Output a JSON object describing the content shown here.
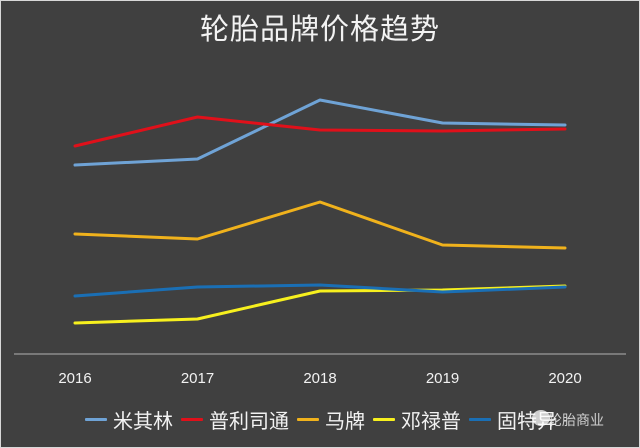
{
  "chart_data": {
    "type": "line",
    "title": "轮胎品牌价格趋势",
    "xlabel": "",
    "ylabel": "",
    "x": [
      "2016",
      "2017",
      "2018",
      "2019",
      "2020"
    ],
    "ylim": [
      0,
      260
    ],
    "y_axis_visible": false,
    "grid": false,
    "legend_position": "bottom",
    "series": [
      {
        "name": "米其林",
        "color": "#6fa3d6",
        "values": [
          189,
          195,
          254,
          231,
          229
        ]
      },
      {
        "name": "普利司通",
        "color": "#e0101a",
        "values": [
          208,
          237,
          224,
          223,
          225
        ]
      },
      {
        "name": "马牌",
        "color": "#f0b21c",
        "values": [
          120,
          115,
          152,
          109,
          106
        ]
      },
      {
        "name": "邓禄普",
        "color": "#f7f01e",
        "values": [
          31,
          35,
          63,
          64,
          68
        ]
      },
      {
        "name": "固特异",
        "color": "#1a6fb5",
        "values": [
          58,
          67,
          69,
          62,
          67
        ]
      }
    ]
  },
  "watermark": "轮胎商业"
}
